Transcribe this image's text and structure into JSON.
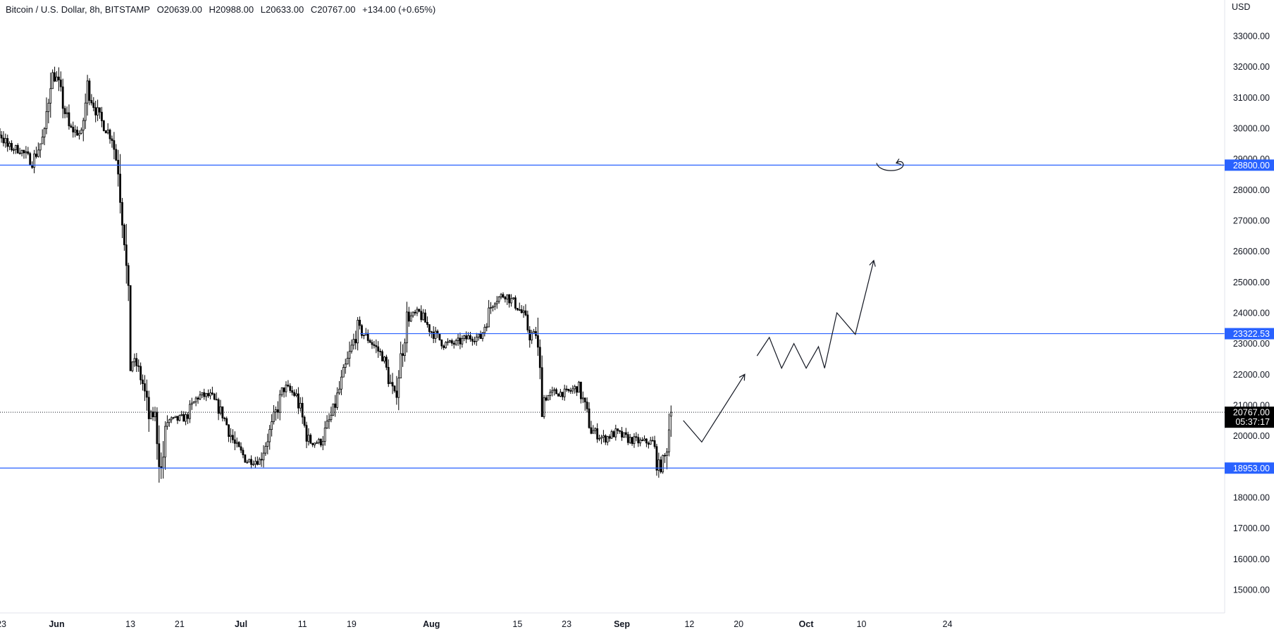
{
  "header": {
    "symbol_title": "Bitcoin / U.S. Dollar, 8h, BITSTAMP",
    "open": "O20639.00",
    "high": "H20988.00",
    "low": "L20633.00",
    "close": "C20767.00",
    "change": "+134.00 (+0.65%)"
  },
  "colors": {
    "background": "#ffffff",
    "candle": "#000000",
    "level_line": "#2962ff",
    "level_label_bg": "#2962ff",
    "current_price_bg": "#000000",
    "axis_text": "#131722",
    "drawing": "#131722"
  },
  "chart_data": {
    "type": "candlestick",
    "title": "Bitcoin / U.S. Dollar, 8h, BITSTAMP",
    "currency_label": "USD",
    "ylim": [
      14300,
      33900
    ],
    "y_ticks": [
      "15000.00",
      "16000.00",
      "17000.00",
      "18000.00",
      "19000.00",
      "20000.00",
      "21000.00",
      "22000.00",
      "23000.00",
      "24000.00",
      "25000.00",
      "26000.00",
      "27000.00",
      "28000.00",
      "29000.00",
      "30000.00",
      "31000.00",
      "32000.00",
      "33000.00"
    ],
    "x_ticks": [
      "23",
      "Jun",
      "13",
      "21",
      "Jul",
      "11",
      "19",
      "Aug",
      "15",
      "23",
      "Sep",
      "12",
      "20",
      "Oct",
      "10",
      "24"
    ],
    "date_range": [
      "May 16",
      "Oct 25"
    ],
    "price_path": [
      [
        "May 16",
        30000
      ],
      [
        "May 18",
        29600
      ],
      [
        "May 20",
        29300
      ],
      [
        "May 22",
        30100
      ],
      [
        "May 24",
        29400
      ],
      [
        "May 26",
        29300
      ],
      [
        "May 28",
        28900
      ],
      [
        "May 30",
        29800
      ],
      [
        "May 31",
        31800
      ],
      [
        "Jun 1",
        31600
      ],
      [
        "Jun 3",
        30000
      ],
      [
        "Jun 5",
        29800
      ],
      [
        "Jun 6",
        31300
      ],
      [
        "Jun 8",
        30300
      ],
      [
        "Jun 10",
        29700
      ],
      [
        "Jun 11",
        28700
      ],
      [
        "Jun 12",
        26600
      ],
      [
        "Jun 13",
        22500
      ],
      [
        "Jun 14",
        22300
      ],
      [
        "Jun 15",
        21700
      ],
      [
        "Jun 16",
        20600
      ],
      [
        "Jun 17",
        20700
      ],
      [
        "Jun 18",
        18800
      ],
      [
        "Jun 19",
        20500
      ],
      [
        "Jun 20",
        20500
      ],
      [
        "Jun 22",
        20600
      ],
      [
        "Jun 24",
        21300
      ],
      [
        "Jun 26",
        21300
      ],
      [
        "Jun 28",
        20700
      ],
      [
        "Jun 30",
        19700
      ],
      [
        "Jul 2",
        19200
      ],
      [
        "Jul 4",
        19200
      ],
      [
        "Jul 6",
        20300
      ],
      [
        "Jul 8",
        21600
      ],
      [
        "Jul 10",
        21300
      ],
      [
        "Jul 12",
        19800
      ],
      [
        "Jul 14",
        19800
      ],
      [
        "Jul 16",
        20800
      ],
      [
        "Jul 18",
        22200
      ],
      [
        "Jul 20",
        23500
      ],
      [
        "Jul 22",
        23100
      ],
      [
        "Jul 24",
        22600
      ],
      [
        "Jul 26",
        21200
      ],
      [
        "Jul 28",
        23800
      ],
      [
        "Jul 30",
        24000
      ],
      [
        "Aug 1",
        23400
      ],
      [
        "Aug 3",
        23000
      ],
      [
        "Aug 5",
        23000
      ],
      [
        "Aug 7",
        23200
      ],
      [
        "Aug 9",
        23200
      ],
      [
        "Aug 11",
        24400
      ],
      [
        "Aug 13",
        24600
      ],
      [
        "Aug 15",
        24200
      ],
      [
        "Aug 16",
        23900
      ],
      [
        "Aug 17",
        23300
      ],
      [
        "Aug 18",
        23300
      ],
      [
        "Aug 19",
        21200
      ],
      [
        "Aug 21",
        21400
      ],
      [
        "Aug 23",
        21400
      ],
      [
        "Aug 25",
        21600
      ],
      [
        "Aug 27",
        20200
      ],
      [
        "Aug 29",
        19900
      ],
      [
        "Aug 31",
        20100
      ],
      [
        "Sep 2",
        19900
      ],
      [
        "Sep 4",
        19800
      ],
      [
        "Sep 6",
        19800
      ],
      [
        "Sep 7",
        18900
      ],
      [
        "Sep 8",
        19300
      ],
      [
        "Sep 9",
        20767
      ]
    ],
    "horizontal_levels": [
      {
        "value": 28800,
        "label": "28800.00"
      },
      {
        "value": 23322.53,
        "label": "23322.53"
      },
      {
        "value": 18953,
        "label": "18953.00"
      }
    ],
    "current_price": {
      "value": 20767,
      "label": "20767.00",
      "countdown": "05:37:17"
    },
    "projection_path": [
      [
        "Sep 11",
        20500
      ],
      [
        "Sep 14",
        19800
      ],
      [
        "Sep 21",
        22000
      ],
      [
        "Sep 23",
        22600
      ],
      [
        "Sep 25",
        23200
      ],
      [
        "Sep 27",
        22200
      ],
      [
        "Sep 29",
        23000
      ],
      [
        "Oct 1",
        22200
      ],
      [
        "Oct 3",
        22900
      ],
      [
        "Oct 4",
        22200
      ],
      [
        "Oct 6",
        24000
      ],
      [
        "Oct 9",
        23300
      ],
      [
        "Oct 12",
        25700
      ]
    ],
    "grid": false
  }
}
